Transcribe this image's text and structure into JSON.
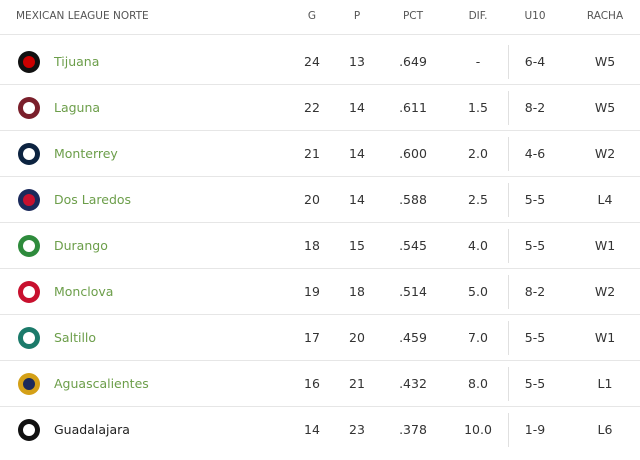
{
  "table": {
    "columns": [
      "MEXICAN LEAGUE NORTE",
      "G",
      "P",
      "PCT",
      "DIF.",
      "U10",
      "RACHA"
    ],
    "rows": [
      {
        "team": "Tijuana",
        "linked": true,
        "cells": [
          "24",
          "13",
          ".649",
          "-",
          "6-4",
          "W5"
        ]
      },
      {
        "team": "Laguna",
        "linked": true,
        "cells": [
          "22",
          "14",
          ".611",
          "1.5",
          "8-2",
          "W5"
        ]
      },
      {
        "team": "Monterrey",
        "linked": true,
        "cells": [
          "21",
          "14",
          ".600",
          "2.0",
          "4-6",
          "W2"
        ]
      },
      {
        "team": "Dos Laredos",
        "linked": true,
        "cells": [
          "20",
          "14",
          ".588",
          "2.5",
          "5-5",
          "L4"
        ]
      },
      {
        "team": "Durango",
        "linked": true,
        "cells": [
          "18",
          "15",
          ".545",
          "4.0",
          "5-5",
          "W1"
        ]
      },
      {
        "team": "Monclova",
        "linked": true,
        "cells": [
          "19",
          "18",
          ".514",
          "5.0",
          "8-2",
          "W2"
        ]
      },
      {
        "team": "Saltillo",
        "linked": true,
        "cells": [
          "17",
          "20",
          ".459",
          "7.0",
          "5-5",
          "W1"
        ]
      },
      {
        "team": "Aguascalientes",
        "linked": true,
        "cells": [
          "16",
          "21",
          ".432",
          "8.0",
          "5-5",
          "L1"
        ]
      },
      {
        "team": "Guadalajara",
        "linked": false,
        "cells": [
          "14",
          "23",
          ".378",
          "10.0",
          "1-9",
          "L6"
        ]
      }
    ]
  }
}
